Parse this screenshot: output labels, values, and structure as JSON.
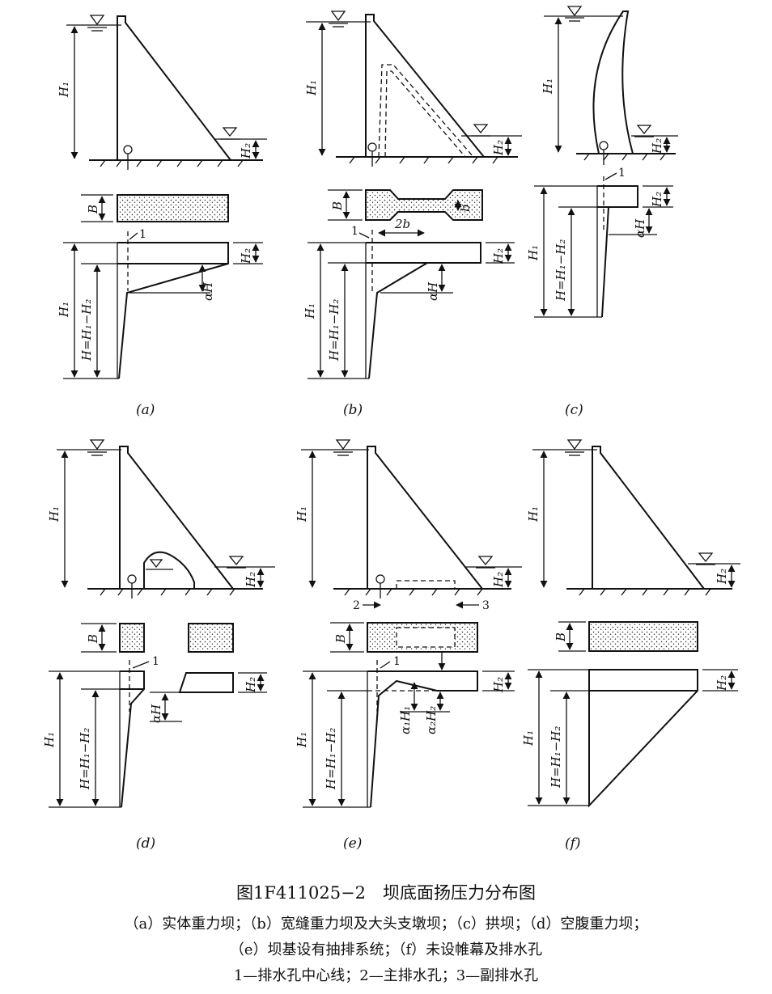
{
  "labels": {
    "H1": "H₁",
    "H2": "H₂",
    "B": "B",
    "b": "b",
    "twob": "2b",
    "aH": "αH",
    "HH": "H=H₁−H₂",
    "a1H1": "α₁H₁",
    "a2H2": "α₂H₂",
    "one": "1",
    "two": "2",
    "three": "3"
  },
  "panels": {
    "a": "(a)",
    "b": "(b)",
    "c": "(c)",
    "d": "(d)",
    "e": "(e)",
    "f": "(f)"
  },
  "caption": {
    "title": "图1F411025−2　坝底面扬压力分布图",
    "line1": "（a）实体重力坝；（b）宽缝重力坝及大头支墩坝；（c）拱坝；（d）空腹重力坝；",
    "line2": "（e）坝基设有抽排系统；（f）未设帷幕及排水孔",
    "line3": "1—排水孔中心线；2—主排水孔；3—副排水孔"
  }
}
